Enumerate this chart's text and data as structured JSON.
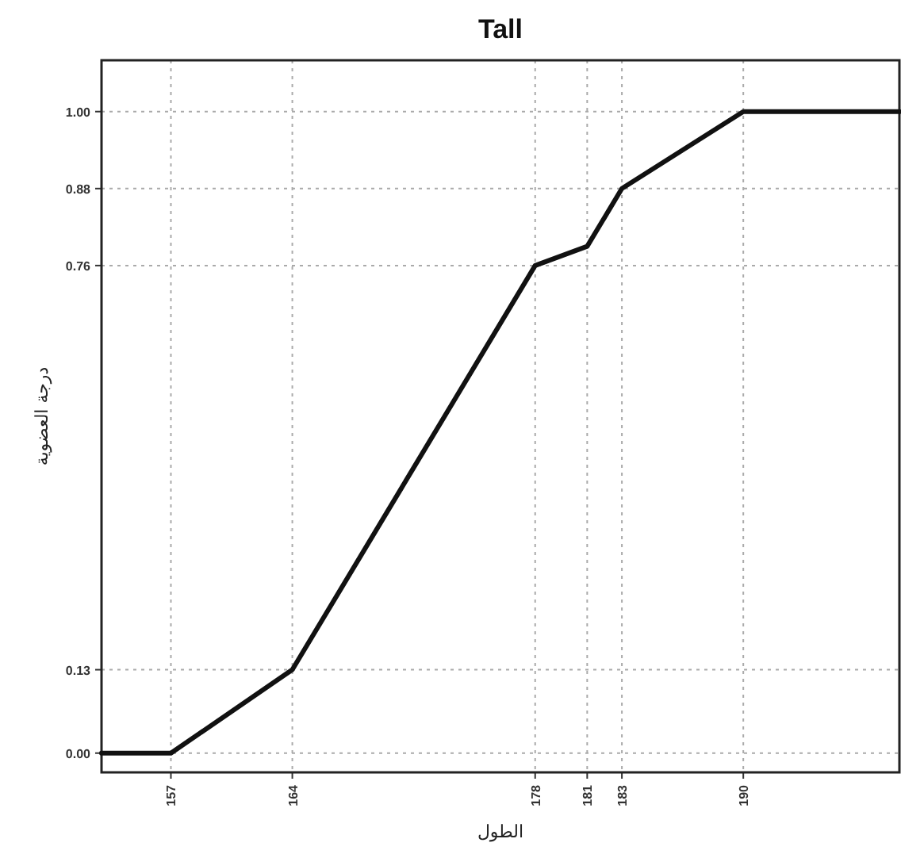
{
  "chart_data": {
    "type": "line",
    "title": "Tall",
    "xlabel": "الطول",
    "ylabel": "درجة العضوية",
    "x": [
      153,
      157,
      164,
      178,
      181,
      183,
      190,
      199
    ],
    "series": [
      {
        "color": "#111111",
        "values": [
          0,
          0,
          0.13,
          0.76,
          0.79,
          0.88,
          1,
          1
        ]
      }
    ],
    "xlim": [
      153,
      199
    ],
    "ylim": [
      -0.03,
      1.08
    ],
    "xticks": [
      157,
      164,
      178,
      181,
      183,
      190
    ],
    "yticks": [
      {
        "value": 0,
        "label": "0.00"
      },
      {
        "value": 0.13,
        "label": "0.13"
      },
      {
        "value": 0.76,
        "label": "0.76"
      },
      {
        "value": 0.88,
        "label": "0.88"
      },
      {
        "value": 1,
        "label": "1.00"
      }
    ],
    "grid": true
  }
}
